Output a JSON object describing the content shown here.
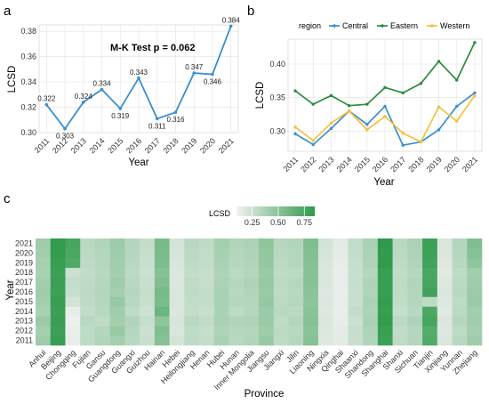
{
  "panels": {
    "a": "a",
    "b": "b",
    "c": "c"
  },
  "chart_data": [
    {
      "type": "line",
      "panel": "a",
      "x": [
        2011,
        2012,
        2013,
        2014,
        2015,
        2016,
        2017,
        2018,
        2019,
        2020,
        2021
      ],
      "values": [
        0.322,
        0.303,
        0.324,
        0.334,
        0.319,
        0.343,
        0.311,
        0.316,
        0.347,
        0.346,
        0.384
      ],
      "data_labels": [
        "0.322",
        "0.303",
        "0.324",
        "0.334",
        "0.319",
        "0.343",
        "0.311",
        "0.316",
        "0.347",
        "0.346",
        "0.384"
      ],
      "annotation": "M-K Test p = 0.062",
      "xlabel": "Year",
      "ylabel": "LCSD",
      "ylim": [
        0.3,
        0.385
      ],
      "yticks": [
        "0.30",
        "0.32",
        "0.34",
        "0.36",
        "0.38"
      ],
      "color": "#3a8fd0",
      "grid": true
    },
    {
      "type": "line",
      "panel": "b",
      "x": [
        2011,
        2012,
        2013,
        2014,
        2015,
        2016,
        2017,
        2018,
        2019,
        2020,
        2021
      ],
      "legend_title": "region",
      "legend_position": "top",
      "series": [
        {
          "name": "Central",
          "color": "#3a8fd0",
          "values": [
            0.296,
            0.28,
            0.304,
            0.33,
            0.31,
            0.337,
            0.279,
            0.284,
            0.302,
            0.337,
            0.357
          ]
        },
        {
          "name": "Eastern",
          "color": "#2a8c3c",
          "values": [
            0.36,
            0.34,
            0.353,
            0.338,
            0.34,
            0.365,
            0.357,
            0.371,
            0.404,
            0.376,
            0.432
          ]
        },
        {
          "name": "Western",
          "color": "#f2c23c",
          "values": [
            0.306,
            0.286,
            0.312,
            0.33,
            0.302,
            0.322,
            0.297,
            0.284,
            0.336,
            0.315,
            0.353
          ]
        }
      ],
      "xlabel": "Year",
      "ylabel": "LCSD",
      "ylim": [
        0.27,
        0.437
      ],
      "yticks": [
        "0.30",
        "0.35",
        "0.40"
      ],
      "grid": true
    },
    {
      "type": "heatmap",
      "panel": "c",
      "xlabel": "Province",
      "ylabel": "Year",
      "legend_title": "LCSD",
      "legend_ticks": [
        "0.25",
        "0.50",
        "0.75"
      ],
      "color_low": "#f2f2f2",
      "color_high": "#2f9a4b",
      "value_range": [
        0.1,
        0.85
      ],
      "years": [
        2011,
        2012,
        2013,
        2014,
        2015,
        2016,
        2017,
        2018,
        2019,
        2020,
        2021
      ],
      "provinces": [
        "Anhui",
        "Beijing",
        "Chongqing",
        "Fujian",
        "Gansu",
        "Guangdong",
        "Guangxi",
        "Guizhou",
        "Hainan",
        "Hebei",
        "Heilongjiang",
        "Henan",
        "Hubei",
        "Hunan",
        "Inner Mongolia",
        "Jiangsu",
        "Jiangxi",
        "Jilin",
        "Liaoning",
        "Ningxia",
        "Qinghai",
        "Shaanxi",
        "Shandong",
        "Shanghai",
        "Shanxi",
        "Sichuan",
        "Tianjin",
        "Xinjiang",
        "Yunnan",
        "Zhejiang"
      ],
      "values": [
        [
          0.42,
          0.82,
          0.14,
          0.3,
          0.35,
          0.4,
          0.32,
          0.26,
          0.52,
          0.22,
          0.3,
          0.28,
          0.38,
          0.32,
          0.35,
          0.45,
          0.3,
          0.33,
          0.52,
          0.18,
          0.16,
          0.26,
          0.35,
          0.8,
          0.3,
          0.34,
          0.72,
          0.2,
          0.32,
          0.42
        ],
        [
          0.4,
          0.8,
          0.13,
          0.3,
          0.34,
          0.45,
          0.33,
          0.25,
          0.54,
          0.2,
          0.3,
          0.27,
          0.36,
          0.33,
          0.34,
          0.42,
          0.31,
          0.32,
          0.5,
          0.19,
          0.15,
          0.27,
          0.36,
          0.82,
          0.29,
          0.33,
          0.7,
          0.18,
          0.3,
          0.4
        ],
        [
          0.44,
          0.81,
          0.12,
          0.32,
          0.3,
          0.4,
          0.35,
          0.27,
          0.48,
          0.21,
          0.32,
          0.29,
          0.38,
          0.35,
          0.36,
          0.44,
          0.3,
          0.34,
          0.52,
          0.2,
          0.14,
          0.25,
          0.38,
          0.83,
          0.31,
          0.36,
          0.76,
          0.19,
          0.33,
          0.42
        ],
        [
          0.38,
          0.8,
          0.14,
          0.28,
          0.32,
          0.42,
          0.3,
          0.24,
          0.62,
          0.19,
          0.28,
          0.26,
          0.37,
          0.3,
          0.33,
          0.43,
          0.32,
          0.31,
          0.5,
          0.18,
          0.13,
          0.28,
          0.36,
          0.82,
          0.27,
          0.32,
          0.74,
          0.17,
          0.31,
          0.41
        ],
        [
          0.4,
          0.82,
          0.22,
          0.3,
          0.33,
          0.45,
          0.32,
          0.26,
          0.56,
          0.2,
          0.29,
          0.28,
          0.38,
          0.33,
          0.34,
          0.46,
          0.31,
          0.33,
          0.48,
          0.19,
          0.14,
          0.26,
          0.37,
          0.83,
          0.29,
          0.34,
          0.3,
          0.18,
          0.3,
          0.44
        ],
        [
          0.42,
          0.8,
          0.26,
          0.31,
          0.34,
          0.4,
          0.33,
          0.27,
          0.58,
          0.2,
          0.3,
          0.28,
          0.38,
          0.32,
          0.35,
          0.44,
          0.3,
          0.32,
          0.5,
          0.18,
          0.13,
          0.26,
          0.35,
          0.81,
          0.3,
          0.34,
          0.78,
          0.19,
          0.32,
          0.43
        ],
        [
          0.4,
          0.81,
          0.28,
          0.3,
          0.33,
          0.42,
          0.32,
          0.26,
          0.54,
          0.19,
          0.3,
          0.27,
          0.37,
          0.33,
          0.36,
          0.45,
          0.31,
          0.33,
          0.52,
          0.2,
          0.14,
          0.27,
          0.36,
          0.82,
          0.3,
          0.35,
          0.76,
          0.18,
          0.31,
          0.42
        ],
        [
          0.38,
          0.8,
          0.25,
          0.29,
          0.32,
          0.4,
          0.31,
          0.25,
          0.52,
          0.19,
          0.28,
          0.27,
          0.36,
          0.31,
          0.34,
          0.44,
          0.3,
          0.31,
          0.51,
          0.19,
          0.13,
          0.26,
          0.34,
          0.82,
          0.29,
          0.33,
          0.75,
          0.17,
          0.3,
          0.41
        ],
        [
          0.39,
          0.82,
          0.72,
          0.3,
          0.33,
          0.41,
          0.32,
          0.26,
          0.55,
          0.2,
          0.3,
          0.28,
          0.38,
          0.33,
          0.35,
          0.46,
          0.31,
          0.33,
          0.52,
          0.2,
          0.14,
          0.27,
          0.36,
          0.84,
          0.3,
          0.35,
          0.78,
          0.18,
          0.32,
          0.48
        ],
        [
          0.41,
          0.83,
          0.74,
          0.31,
          0.34,
          0.42,
          0.33,
          0.27,
          0.56,
          0.21,
          0.31,
          0.29,
          0.39,
          0.34,
          0.36,
          0.47,
          0.32,
          0.34,
          0.53,
          0.21,
          0.15,
          0.28,
          0.37,
          0.84,
          0.31,
          0.36,
          0.79,
          0.19,
          0.33,
          0.52
        ],
        [
          0.42,
          0.84,
          0.76,
          0.32,
          0.35,
          0.43,
          0.34,
          0.28,
          0.57,
          0.22,
          0.32,
          0.3,
          0.4,
          0.35,
          0.37,
          0.48,
          0.33,
          0.35,
          0.54,
          0.22,
          0.16,
          0.29,
          0.38,
          0.85,
          0.32,
          0.37,
          0.8,
          0.2,
          0.34,
          0.54
        ]
      ]
    }
  ]
}
